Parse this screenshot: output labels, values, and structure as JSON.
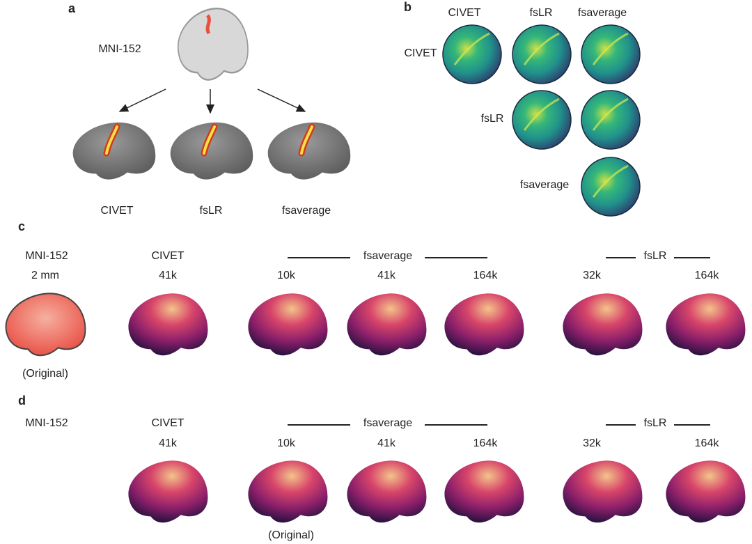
{
  "panel_a": {
    "letter": "a",
    "source": "MNI-152",
    "targets": [
      "CIVET",
      "fsLR",
      "fsaverage"
    ]
  },
  "panel_b": {
    "letter": "b",
    "columns": [
      "CIVET",
      "fsLR",
      "fsaverage"
    ],
    "rows": [
      "CIVET",
      "fsLR",
      "fsaverage"
    ]
  },
  "panel_c": {
    "letter": "c",
    "source": "MNI-152",
    "source_res": "2 mm",
    "source_note": "(Original)",
    "groups": {
      "civet": "CIVET",
      "fsaverage": "fsaverage",
      "fslr": "fsLR"
    },
    "resolutions": [
      "41k",
      "10k",
      "41k",
      "164k",
      "32k",
      "164k"
    ]
  },
  "panel_d": {
    "letter": "d",
    "source": "MNI-152",
    "note": "(Original)",
    "groups": {
      "civet": "CIVET",
      "fsaverage": "fsaverage",
      "fslr": "fsLR"
    },
    "resolutions": [
      "41k",
      "10k",
      "41k",
      "164k",
      "32k",
      "164k"
    ]
  },
  "colors": {
    "surface": "#808080",
    "magma_low": "#2a1240",
    "magma_mid": "#c8306a",
    "magma_high": "#f3c48a",
    "viridis_low": "#3b1f6b",
    "viridis_mid": "#21918c",
    "viridis_high": "#c8e04a",
    "volume": "#e8503c"
  }
}
